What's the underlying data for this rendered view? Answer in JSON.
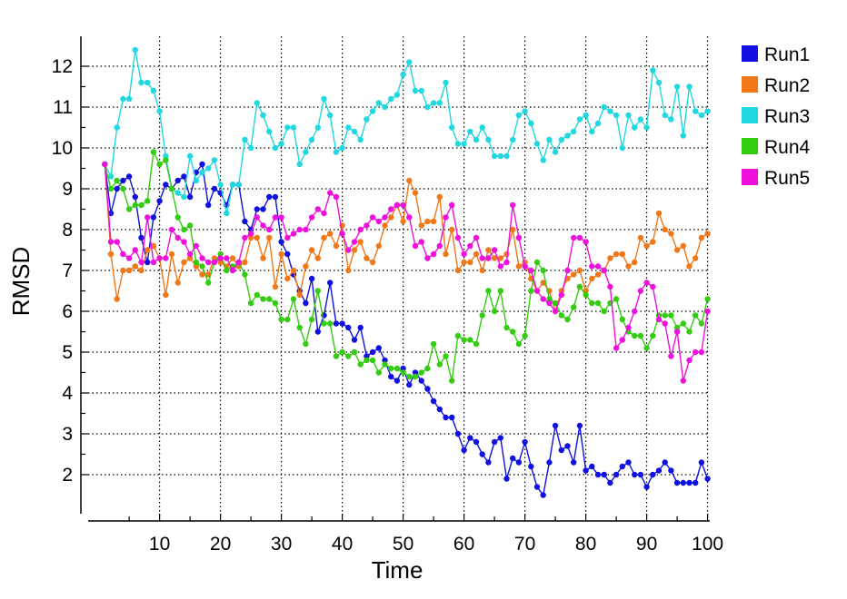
{
  "chart_data": {
    "type": "line",
    "xlabel": "Time",
    "ylabel": "RMSD",
    "xlim": [
      0,
      100
    ],
    "ylim": [
      1.2,
      12.8
    ],
    "xticks": [
      10,
      20,
      30,
      40,
      50,
      60,
      70,
      80,
      90,
      100
    ],
    "yticks": [
      2,
      3,
      4,
      5,
      6,
      7,
      8,
      9,
      10,
      11,
      12
    ],
    "grid": true,
    "legend_position": "top-right",
    "x": [
      1,
      2,
      3,
      4,
      5,
      6,
      7,
      8,
      9,
      10,
      11,
      12,
      13,
      14,
      15,
      16,
      17,
      18,
      19,
      20,
      21,
      22,
      23,
      24,
      25,
      26,
      27,
      28,
      29,
      30,
      31,
      32,
      33,
      34,
      35,
      36,
      37,
      38,
      39,
      40,
      41,
      42,
      43,
      44,
      45,
      46,
      47,
      48,
      49,
      50,
      51,
      52,
      53,
      54,
      55,
      56,
      57,
      58,
      59,
      60,
      61,
      62,
      63,
      64,
      65,
      66,
      67,
      68,
      69,
      70,
      71,
      72,
      73,
      74,
      75,
      76,
      77,
      78,
      79,
      80,
      81,
      82,
      83,
      84,
      85,
      86,
      87,
      88,
      89,
      90,
      91,
      92,
      93,
      94,
      95,
      96,
      97,
      98,
      99,
      100
    ],
    "series": [
      {
        "name": "Run1",
        "color": "#1010e0",
        "values": [
          9.6,
          8.4,
          9.0,
          9.2,
          9.3,
          8.8,
          7.8,
          7.2,
          8.3,
          8.7,
          9.1,
          9.0,
          9.2,
          9.3,
          8.8,
          9.4,
          9.6,
          8.6,
          9.0,
          8.9,
          8.6,
          9.1,
          9.1,
          8.2,
          8.0,
          8.5,
          8.5,
          8.8,
          8.8,
          7.7,
          7.4,
          6.9,
          6.5,
          6.2,
          6.8,
          5.5,
          5.9,
          6.7,
          5.7,
          5.7,
          5.6,
          5.3,
          5.6,
          4.9,
          5.0,
          5.1,
          4.8,
          4.4,
          4.3,
          4.6,
          4.2,
          4.5,
          4.3,
          4.1,
          3.8,
          3.6,
          3.4,
          3.4,
          3.0,
          2.6,
          2.9,
          2.8,
          2.5,
          2.3,
          2.8,
          2.9,
          1.9,
          2.4,
          2.3,
          2.8,
          2.2,
          1.7,
          1.5,
          2.3,
          3.2,
          2.6,
          2.7,
          2.3,
          3.2,
          2.1,
          2.2,
          2.0,
          2.0,
          1.8,
          2.0,
          2.2,
          2.3,
          2.0,
          2.0,
          1.7,
          2.0,
          2.1,
          2.3,
          2.1,
          1.8,
          1.8,
          1.8,
          1.8,
          2.3,
          1.9
        ]
      },
      {
        "name": "Run2",
        "color": "#f07818",
        "values": [
          9.6,
          7.4,
          6.3,
          7.0,
          7.0,
          7.1,
          7.0,
          7.5,
          7.6,
          7.3,
          6.4,
          7.4,
          6.7,
          7.2,
          7.3,
          7.1,
          6.9,
          6.9,
          7.3,
          7.2,
          7.1,
          7.3,
          7.1,
          7.2,
          7.8,
          7.8,
          7.3,
          7.8,
          6.6,
          7.4,
          6.8,
          7.0,
          6.4,
          7.1,
          7.5,
          7.3,
          7.8,
          7.9,
          7.6,
          8.1,
          7.0,
          7.5,
          7.7,
          7.3,
          7.2,
          7.6,
          8.1,
          8.3,
          8.6,
          8.2,
          9.2,
          8.9,
          8.1,
          8.2,
          8.2,
          8.8,
          7.4,
          8.0,
          7.0,
          7.2,
          7.2,
          7.4,
          7.0,
          7.5,
          7.3,
          7.3,
          7.4,
          8.0,
          7.1,
          7.2,
          6.8,
          6.5,
          6.7,
          6.5,
          6.0,
          6.5,
          6.8,
          6.9,
          7.0,
          6.5,
          6.8,
          6.9,
          7.0,
          7.3,
          7.4,
          7.4,
          7.1,
          7.2,
          7.8,
          7.6,
          7.7,
          8.4,
          8.0,
          7.9,
          7.5,
          7.6,
          7.1,
          7.3,
          7.8,
          7.9
        ]
      },
      {
        "name": "Run3",
        "color": "#20d8e0",
        "values": [
          9.6,
          9.3,
          10.5,
          11.2,
          11.2,
          12.4,
          11.6,
          11.6,
          11.4,
          10.9,
          9.8,
          9.0,
          8.9,
          8.8,
          9.8,
          9.2,
          9.4,
          9.5,
          9.7,
          9.1,
          8.4,
          9.1,
          9.1,
          10.2,
          10.0,
          11.1,
          10.8,
          10.4,
          10.0,
          10.1,
          10.5,
          10.5,
          9.6,
          9.9,
          10.2,
          10.5,
          11.2,
          10.8,
          9.9,
          10.0,
          10.5,
          10.4,
          10.2,
          10.7,
          10.9,
          11.1,
          11.0,
          11.2,
          11.3,
          11.8,
          12.1,
          11.4,
          11.4,
          11.0,
          11.1,
          11.1,
          11.6,
          10.5,
          10.1,
          10.1,
          10.4,
          10.2,
          10.5,
          10.2,
          9.8,
          9.8,
          9.8,
          10.2,
          10.8,
          10.9,
          10.6,
          10.1,
          9.7,
          10.2,
          9.9,
          10.2,
          10.3,
          10.4,
          10.7,
          10.8,
          10.4,
          10.6,
          11.0,
          10.9,
          10.8,
          10.0,
          10.8,
          10.5,
          10.7,
          10.5,
          11.9,
          11.6,
          10.8,
          10.7,
          11.5,
          10.3,
          11.5,
          10.9,
          10.8,
          10.9
        ]
      },
      {
        "name": "Run4",
        "color": "#33cc11",
        "values": [
          9.6,
          9.0,
          9.2,
          9.0,
          8.5,
          8.6,
          8.6,
          8.7,
          9.9,
          9.6,
          9.7,
          9.0,
          8.3,
          8.0,
          8.1,
          7.2,
          7.1,
          6.7,
          7.2,
          7.4,
          7.0,
          7.1,
          7.2,
          6.9,
          6.2,
          6.4,
          6.3,
          6.3,
          6.2,
          5.8,
          5.8,
          6.3,
          5.6,
          5.2,
          5.8,
          6.5,
          5.7,
          5.7,
          4.9,
          5.0,
          4.9,
          5.0,
          4.7,
          4.8,
          4.8,
          4.5,
          4.7,
          4.6,
          4.6,
          4.5,
          4.4,
          4.4,
          4.5,
          4.6,
          5.2,
          4.7,
          4.9,
          4.3,
          5.4,
          5.3,
          5.3,
          5.2,
          5.9,
          6.5,
          6.0,
          6.5,
          5.6,
          5.5,
          5.2,
          5.4,
          6.5,
          7.2,
          7.0,
          6.3,
          6.2,
          5.9,
          5.8,
          6.1,
          6.6,
          6.4,
          6.2,
          6.2,
          6.0,
          6.2,
          6.3,
          5.8,
          5.5,
          5.4,
          5.4,
          5.1,
          5.4,
          5.9,
          5.9,
          5.9,
          5.6,
          5.7,
          5.5,
          5.9,
          5.7,
          6.3
        ]
      },
      {
        "name": "Run5",
        "color": "#ee11dd",
        "values": [
          9.6,
          7.7,
          7.7,
          7.4,
          7.3,
          7.5,
          7.2,
          8.3,
          7.2,
          7.3,
          7.3,
          8.0,
          7.8,
          7.7,
          7.4,
          7.6,
          7.3,
          7.2,
          7.2,
          7.3,
          7.3,
          7.0,
          7.2,
          7.8,
          7.9,
          8.3,
          8.1,
          8.0,
          8.3,
          8.3,
          7.8,
          7.9,
          8.0,
          8.0,
          8.3,
          8.5,
          8.4,
          8.9,
          8.8,
          7.9,
          7.5,
          7.7,
          8.0,
          8.1,
          8.3,
          8.2,
          8.3,
          8.5,
          8.6,
          8.6,
          8.3,
          7.6,
          7.7,
          7.3,
          7.4,
          7.6,
          8.3,
          8.6,
          7.8,
          7.4,
          7.6,
          7.8,
          7.3,
          7.3,
          7.5,
          7.1,
          7.2,
          8.6,
          7.8,
          7.1,
          7.0,
          6.5,
          6.3,
          6.2,
          6.0,
          6.4,
          7.0,
          7.8,
          7.8,
          7.7,
          7.1,
          7.1,
          7.0,
          6.6,
          5.1,
          5.3,
          5.6,
          6.0,
          6.5,
          6.7,
          6.6,
          5.8,
          5.7,
          4.9,
          5.5,
          4.3,
          4.8,
          5.0,
          5.0,
          6.0
        ]
      }
    ]
  }
}
